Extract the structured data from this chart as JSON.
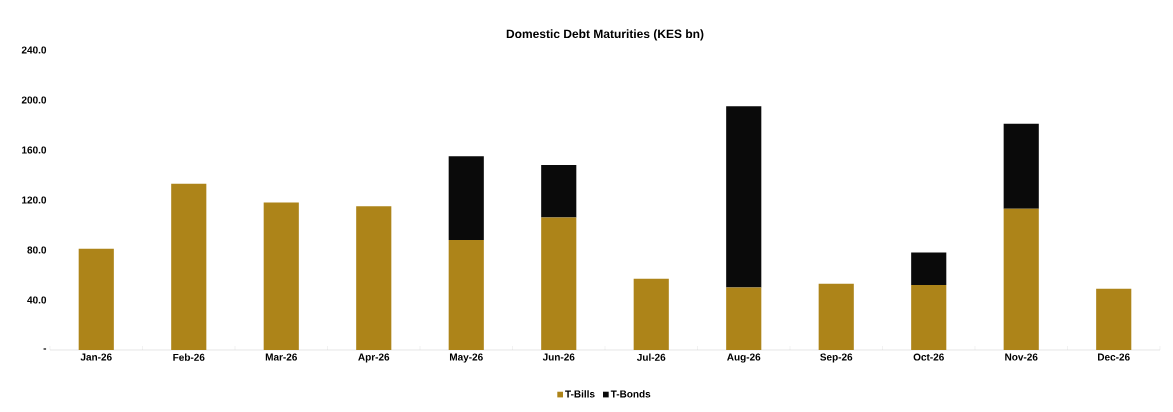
{
  "chart_data": {
    "type": "bar",
    "title": "Domestic Debt Maturities (KES bn)",
    "stacked": true,
    "categories": [
      "Jan-26",
      "Feb-26",
      "Mar-26",
      "Apr-26",
      "May-26",
      "Jun-26",
      "Jul-26",
      "Aug-26",
      "Sep-26",
      "Oct-26",
      "Nov-26",
      "Dec-26"
    ],
    "series": [
      {
        "name": "T-Bills",
        "color": "#ad8419",
        "values": [
          81,
          133,
          118,
          115,
          88,
          106,
          57,
          50,
          53,
          52,
          113,
          49
        ]
      },
      {
        "name": "T-Bonds",
        "color": "#0a0a0a",
        "values": [
          null,
          null,
          null,
          null,
          67,
          42,
          null,
          145,
          null,
          26,
          68,
          null
        ]
      }
    ],
    "ylim": [
      0,
      240
    ],
    "yticks": [
      {
        "value": 0,
        "label": "-"
      },
      {
        "value": 40,
        "label": "40.0"
      },
      {
        "value": 80,
        "label": "80.0"
      },
      {
        "value": 120,
        "label": "120.0"
      },
      {
        "value": 160,
        "label": "160.0"
      },
      {
        "value": 200,
        "label": "200.0"
      },
      {
        "value": 240,
        "label": "240.0"
      }
    ],
    "legend": "bottom",
    "grid": false
  }
}
